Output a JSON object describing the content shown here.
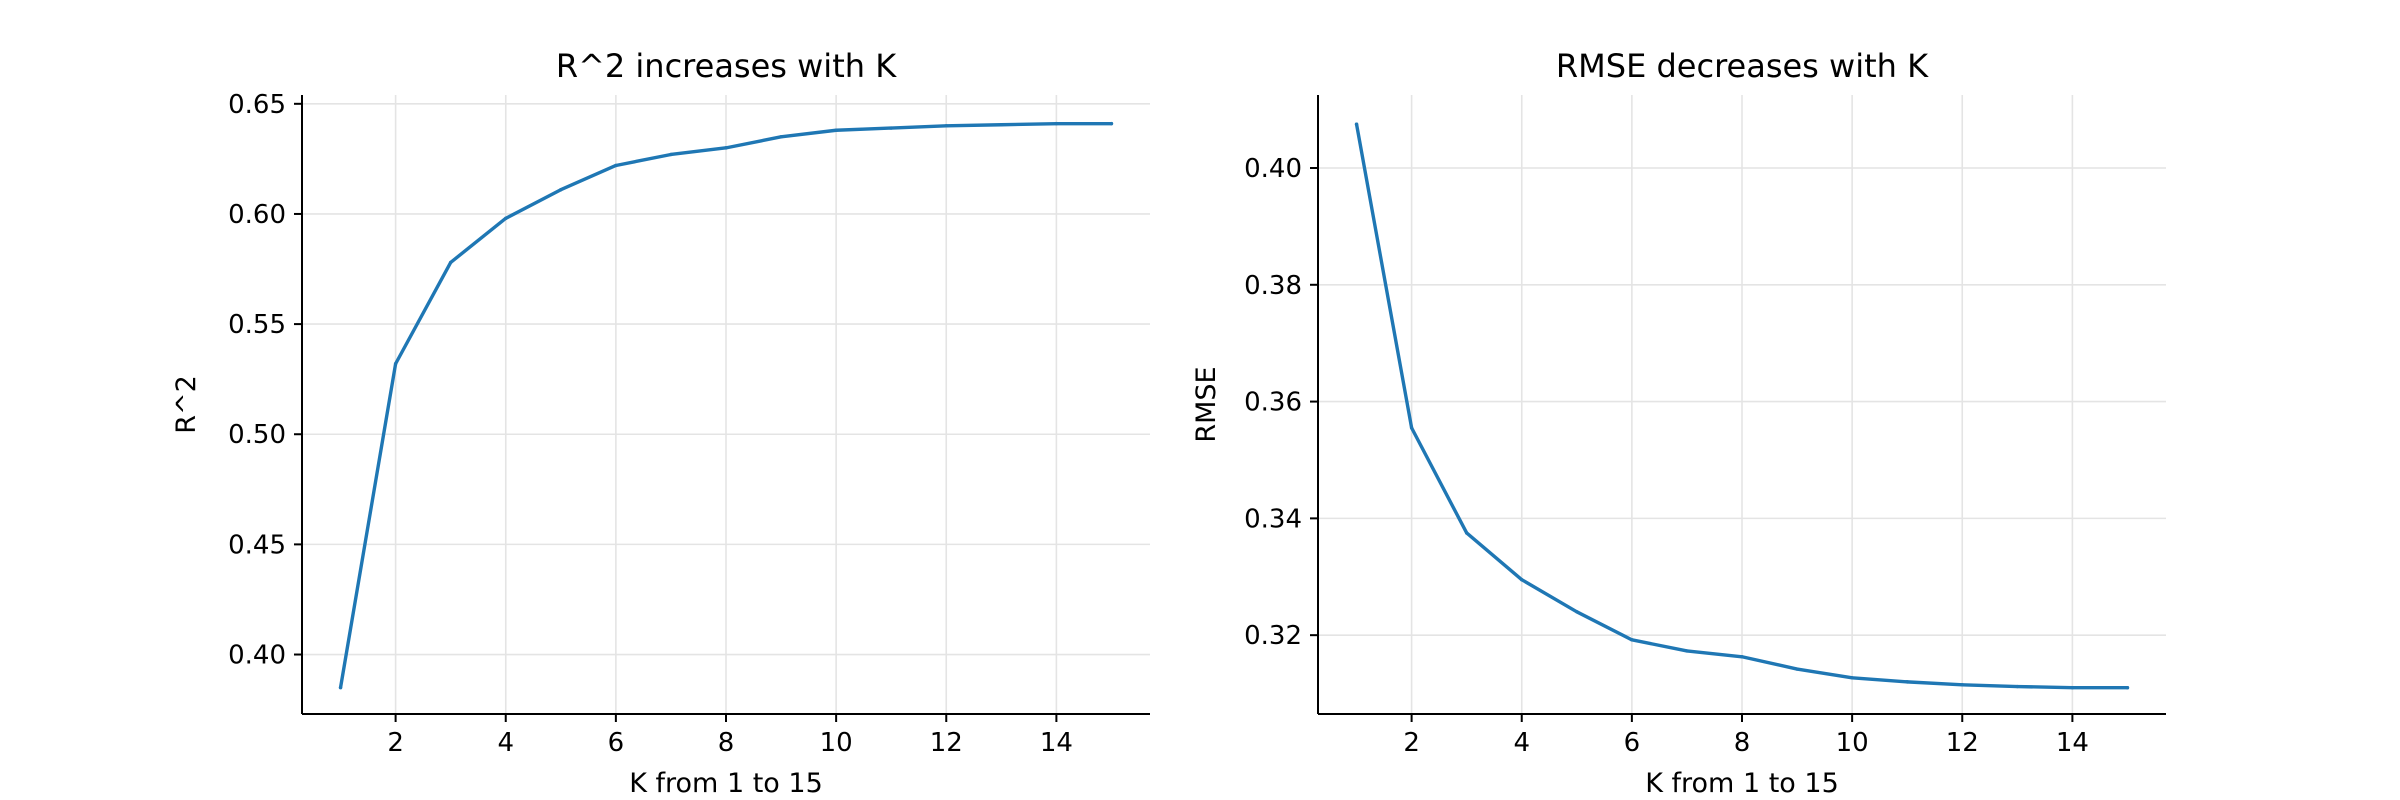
{
  "chart_data": [
    {
      "type": "line",
      "title": "R^2 increases with K",
      "xlabel": "K from 1 to 15",
      "ylabel": "R^2",
      "x": [
        1,
        2,
        3,
        4,
        5,
        6,
        7,
        8,
        9,
        10,
        11,
        12,
        13,
        14,
        15
      ],
      "series": [
        {
          "values": [
            0.385,
            0.532,
            0.578,
            0.598,
            0.611,
            0.622,
            0.627,
            0.63,
            0.635,
            0.638,
            0.639,
            0.64,
            0.6405,
            0.641,
            0.641
          ]
        }
      ],
      "xlim": [
        0.3,
        15.7
      ],
      "ylim": [
        0.373,
        0.654
      ],
      "xticks": [
        2,
        4,
        6,
        8,
        10,
        12,
        14
      ],
      "yticks": [
        0.4,
        0.45,
        0.5,
        0.55,
        0.6,
        0.65
      ],
      "ytick_labels": [
        "0.40",
        "0.45",
        "0.50",
        "0.55",
        "0.60",
        "0.65"
      ],
      "grid": true,
      "color": "#1f77b4"
    },
    {
      "type": "line",
      "title": "RMSE decreases with K",
      "xlabel": "K from 1 to 15",
      "ylabel": "RMSE",
      "x": [
        1,
        2,
        3,
        4,
        5,
        6,
        7,
        8,
        9,
        10,
        11,
        12,
        13,
        14,
        15
      ],
      "series": [
        {
          "values": [
            0.4075,
            0.3555,
            0.3375,
            0.3295,
            0.324,
            0.3192,
            0.3173,
            0.3163,
            0.3142,
            0.3127,
            0.312,
            0.3115,
            0.3112,
            0.311,
            0.311
          ]
        }
      ],
      "xlim": [
        0.3,
        15.7
      ],
      "ylim": [
        0.3065,
        0.4125
      ],
      "xticks": [
        2,
        4,
        6,
        8,
        10,
        12,
        14
      ],
      "yticks": [
        0.32,
        0.34,
        0.36,
        0.38,
        0.4
      ],
      "ytick_labels": [
        "0.32",
        "0.34",
        "0.36",
        "0.38",
        "0.40"
      ],
      "grid": true,
      "color": "#1f77b4"
    }
  ]
}
